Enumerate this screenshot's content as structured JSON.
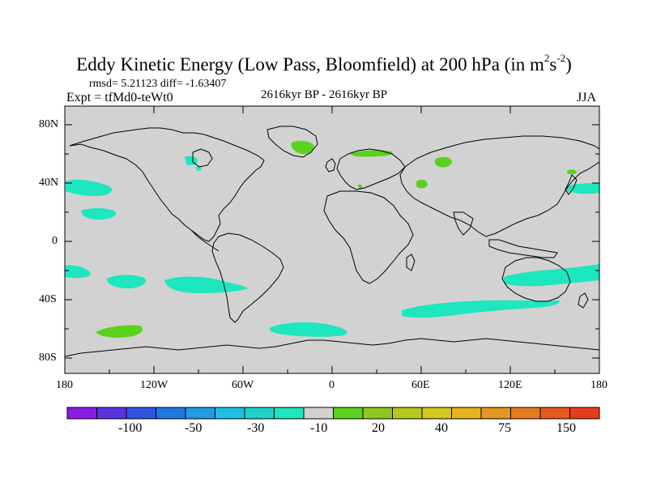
{
  "title": {
    "main": "Eddy Kinetic Energy (Low Pass, Bloomfield) at 200 hPa (in m",
    "sup1": "2",
    "mid": "s",
    "sup2": "-2",
    "end": ")"
  },
  "stats": "rmsd= 5.21123 diff= -1.63407",
  "experiment": "Expt = tfMd0-teWt0",
  "period": "2616kyr BP - 2616kyr BP",
  "season": "JJA",
  "lat_labels": [
    "80N",
    "40N",
    "0",
    "40S",
    "80S"
  ],
  "lon_labels": [
    "180",
    "120W",
    "60W",
    "0",
    "60E",
    "120E",
    "180"
  ],
  "colorbar": {
    "labels": [
      "-100",
      "-50",
      "-30",
      "-10",
      "20",
      "40",
      "75",
      "150"
    ],
    "colors": [
      "#8a1ee6",
      "#5a32e0",
      "#2f55e0",
      "#1e78e0",
      "#1e9ce6",
      "#1ebfe6",
      "#1ed2c8",
      "#1ee6be",
      "#d2d2d2",
      "#5ad21e",
      "#8cc81e",
      "#b4c81e",
      "#d2c81e",
      "#e6b41e",
      "#e6961e",
      "#e6781e",
      "#e65a1e",
      "#e63c1e"
    ]
  },
  "map": {
    "land_color": "#d2d2d2",
    "positive_color": "#5ad21e",
    "negative_color": "#1ee6be",
    "anomalies": [
      {
        "sign": "neg",
        "region": "Gulf of Alaska"
      },
      {
        "sign": "neg",
        "region": "Hudson Bay"
      },
      {
        "sign": "neg",
        "region": "NE Pacific"
      },
      {
        "sign": "neg",
        "region": "Central Pacific subtropics"
      },
      {
        "sign": "neg",
        "region": "South Pacific west"
      },
      {
        "sign": "neg",
        "region": "South Pacific central"
      },
      {
        "sign": "neg",
        "region": "Southern Ocean Pacific"
      },
      {
        "sign": "neg",
        "region": "Southern Ocean Indian"
      },
      {
        "sign": "neg",
        "region": "Australia south"
      },
      {
        "sign": "neg",
        "region": "NW Pacific"
      },
      {
        "sign": "neg",
        "region": "South Atlantic"
      },
      {
        "sign": "pos",
        "region": "Greenland"
      },
      {
        "sign": "pos",
        "region": "Scandinavia"
      },
      {
        "sign": "pos",
        "region": "Western Siberia"
      },
      {
        "sign": "pos",
        "region": "Caspian"
      },
      {
        "sign": "pos",
        "region": "South Pacific high latitude"
      },
      {
        "sign": "pos",
        "region": "Kamchatka"
      },
      {
        "sign": "pos",
        "region": "Mediterranean"
      }
    ]
  }
}
